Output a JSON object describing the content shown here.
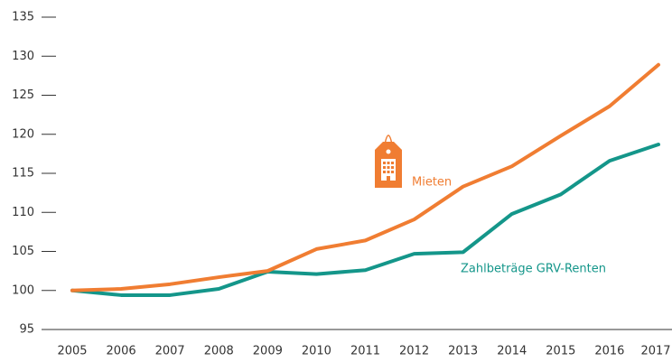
{
  "chart_data": {
    "type": "line",
    "categories": [
      "2005",
      "2006",
      "2007",
      "2008",
      "2009",
      "2010",
      "2011",
      "2012",
      "2013",
      "2014",
      "2015",
      "2016",
      "2017"
    ],
    "series": [
      {
        "name": "Mieten",
        "color": "#f07d32",
        "values": [
          100,
          100.2,
          100.8,
          101.7,
          102.5,
          105.3,
          106.4,
          109.1,
          113.3,
          115.9,
          119.8,
          123.6,
          128.9
        ]
      },
      {
        "name": "Zahlbeträge GRV-Renten",
        "color": "#14968a",
        "values": [
          100,
          99.4,
          99.4,
          100.2,
          102.4,
          102.1,
          102.6,
          104.7,
          104.9,
          109.8,
          112.3,
          116.6,
          118.7
        ]
      }
    ],
    "ylim": [
      95,
      135
    ],
    "yticks": [
      95,
      100,
      105,
      110,
      115,
      120,
      125,
      130,
      135
    ],
    "grid": false
  }
}
